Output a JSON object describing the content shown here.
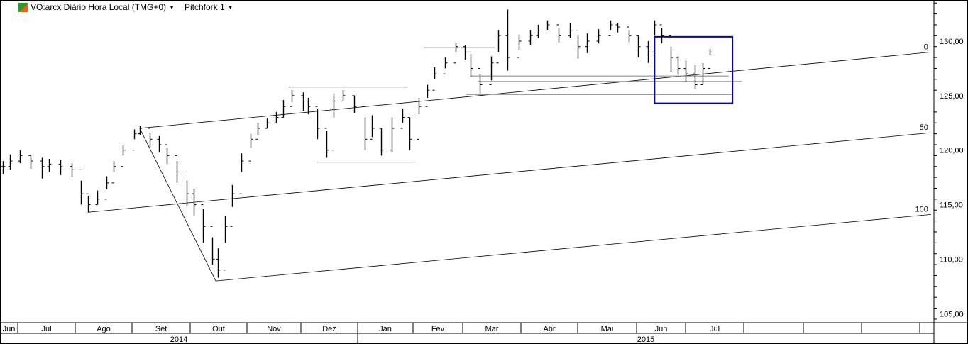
{
  "header": {
    "logo_text": "Eo",
    "symbol_label": "VO:arcx Diário Hora Local (TMG+0)",
    "study_label": "Pitchfork 1",
    "dropdown_icon": "triangle-down-icon"
  },
  "chart_data": {
    "type": "ohlc",
    "ylim": [
      104,
      133.5
    ],
    "y_ticks": [
      "105,00",
      "110,00",
      "115,00",
      "120,00",
      "125,00",
      "130,00"
    ],
    "y_tick_values": [
      105,
      110,
      115,
      120,
      125,
      130
    ],
    "months": [
      {
        "label": "Jun",
        "start": "2014-06-01"
      },
      {
        "label": "Jul",
        "start": "2014-07-01"
      },
      {
        "label": "Ago",
        "start": "2014-08-01"
      },
      {
        "label": "Set",
        "start": "2014-09-01"
      },
      {
        "label": "Out",
        "start": "2014-10-01"
      },
      {
        "label": "Nov",
        "start": "2014-11-01"
      },
      {
        "label": "Dez",
        "start": "2014-12-01"
      },
      {
        "label": "Jan",
        "start": "2015-01-01"
      },
      {
        "label": "Fev",
        "start": "2015-02-01"
      },
      {
        "label": "Mar",
        "start": "2015-03-01"
      },
      {
        "label": "Abr",
        "start": "2015-04-01"
      },
      {
        "label": "Mai",
        "start": "2015-05-01"
      },
      {
        "label": "Jun",
        "start": "2015-06-01"
      },
      {
        "label": "Jul",
        "start": "2015-07-01"
      },
      {
        "label": "",
        "start": "2015-08-01"
      },
      {
        "label": "",
        "start": "2015-09-01"
      },
      {
        "label": "",
        "start": "2015-10-01"
      },
      {
        "label": "",
        "start": "2015-11-01"
      }
    ],
    "years": [
      {
        "label": "2014"
      },
      {
        "label": "2015"
      }
    ],
    "bars": [
      [
        "2014-06-23",
        119.0,
        117.8,
        118.5
      ],
      [
        "2014-06-27",
        119.6,
        118.2,
        119.0
      ],
      [
        "2014-07-02",
        120.0,
        118.8,
        119.5
      ],
      [
        "2014-07-08",
        119.6,
        118.3,
        119.0
      ],
      [
        "2014-07-14",
        119.3,
        117.4,
        118.5
      ],
      [
        "2014-07-18",
        119.2,
        118.0,
        118.7
      ],
      [
        "2014-07-24",
        119.1,
        117.7,
        118.5
      ],
      [
        "2014-07-30",
        118.8,
        117.5,
        118.2
      ],
      [
        "2014-08-04",
        117.2,
        115.0,
        116.0
      ],
      [
        "2014-08-08",
        115.8,
        114.3,
        115.0
      ],
      [
        "2014-08-13",
        116.3,
        115.0,
        115.5
      ],
      [
        "2014-08-18",
        117.6,
        116.4,
        117.0
      ],
      [
        "2014-08-22",
        119.0,
        118.0,
        118.5
      ],
      [
        "2014-08-27",
        120.5,
        119.5,
        120.0
      ],
      [
        "2014-09-02",
        121.9,
        121.0,
        121.5
      ],
      [
        "2014-09-05",
        122.2,
        121.4,
        122.0
      ],
      [
        "2014-09-10",
        121.6,
        120.3,
        121.0
      ],
      [
        "2014-09-15",
        121.3,
        119.8,
        120.5
      ],
      [
        "2014-09-19",
        120.2,
        118.7,
        119.5
      ],
      [
        "2014-09-24",
        119.0,
        117.0,
        118.0
      ],
      [
        "2014-09-29",
        117.2,
        114.9,
        116.0
      ],
      [
        "2014-10-03",
        116.4,
        114.0,
        115.0
      ],
      [
        "2014-10-08",
        114.6,
        111.5,
        113.0
      ],
      [
        "2014-10-13",
        112.0,
        109.5,
        110.0
      ],
      [
        "2014-10-16",
        111.0,
        108.3,
        109.0
      ],
      [
        "2014-10-20",
        114.0,
        111.5,
        113.0
      ],
      [
        "2014-10-24",
        116.8,
        114.8,
        116.0
      ],
      [
        "2014-10-29",
        119.7,
        118.0,
        119.0
      ],
      [
        "2014-11-03",
        121.5,
        120.2,
        121.0
      ],
      [
        "2014-11-07",
        122.5,
        121.4,
        122.0
      ],
      [
        "2014-11-12",
        122.9,
        122.0,
        122.5
      ],
      [
        "2014-11-17",
        123.5,
        122.5,
        123.0
      ],
      [
        "2014-11-21",
        124.6,
        123.0,
        124.0
      ],
      [
        "2014-11-26",
        125.5,
        124.4,
        125.0
      ],
      [
        "2014-12-02",
        125.3,
        123.6,
        124.5
      ],
      [
        "2014-12-05",
        124.8,
        123.3,
        124.0
      ],
      [
        "2014-12-10",
        123.8,
        121.0,
        122.0
      ],
      [
        "2014-12-15",
        121.8,
        119.3,
        120.0
      ],
      [
        "2014-12-19",
        125.2,
        123.0,
        124.5
      ],
      [
        "2014-12-24",
        125.5,
        124.5,
        125.0
      ],
      [
        "2014-12-30",
        125.0,
        123.4,
        124.0
      ],
      [
        "2015-01-05",
        123.0,
        120.0,
        121.0
      ],
      [
        "2015-01-09",
        123.2,
        121.2,
        122.0
      ],
      [
        "2015-01-14",
        122.0,
        119.5,
        120.0
      ],
      [
        "2015-01-20",
        123.0,
        119.8,
        122.0
      ],
      [
        "2015-01-26",
        123.8,
        122.5,
        123.0
      ],
      [
        "2015-01-30",
        123.0,
        120.0,
        121.0
      ],
      [
        "2015-02-04",
        124.8,
        123.3,
        124.0
      ],
      [
        "2015-02-09",
        126.0,
        124.8,
        125.5
      ],
      [
        "2015-02-13",
        127.6,
        126.5,
        127.0
      ],
      [
        "2015-02-19",
        128.5,
        127.5,
        128.0
      ],
      [
        "2015-02-25",
        129.8,
        129.0,
        129.5
      ],
      [
        "2015-03-02",
        129.6,
        128.3,
        129.0
      ],
      [
        "2015-03-05",
        128.8,
        126.7,
        127.5
      ],
      [
        "2015-03-10",
        127.0,
        125.2,
        126.0
      ],
      [
        "2015-03-16",
        128.6,
        126.4,
        128.0
      ],
      [
        "2015-03-20",
        131.0,
        129.0,
        130.5
      ],
      [
        "2015-03-25",
        132.9,
        127.3,
        128.5
      ],
      [
        "2015-03-31",
        130.6,
        129.2,
        130.0
      ],
      [
        "2015-04-06",
        131.0,
        129.6,
        130.5
      ],
      [
        "2015-04-10",
        131.5,
        130.3,
        131.0
      ],
      [
        "2015-04-15",
        131.9,
        131.0,
        131.5
      ],
      [
        "2015-04-21",
        131.2,
        129.8,
        130.5
      ],
      [
        "2015-04-27",
        131.7,
        130.3,
        131.0
      ],
      [
        "2015-05-01",
        130.6,
        128.4,
        129.5
      ],
      [
        "2015-05-06",
        130.7,
        128.9,
        130.0
      ],
      [
        "2015-05-12",
        131.1,
        129.8,
        130.5
      ],
      [
        "2015-05-18",
        131.9,
        131.0,
        131.5
      ],
      [
        "2015-05-22",
        131.7,
        130.8,
        131.3
      ],
      [
        "2015-05-28",
        131.0,
        129.9,
        130.5
      ],
      [
        "2015-06-02",
        130.5,
        128.5,
        129.5
      ],
      [
        "2015-06-08",
        130.0,
        128.0,
        129.0
      ],
      [
        "2015-06-12",
        131.9,
        130.5,
        131.5
      ],
      [
        "2015-06-16",
        131.2,
        129.8,
        130.5
      ],
      [
        "2015-06-22",
        129.5,
        127.2,
        128.5
      ],
      [
        "2015-06-26",
        128.6,
        126.9,
        127.5
      ],
      [
        "2015-07-01",
        128.2,
        126.3,
        127.0
      ],
      [
        "2015-07-06",
        127.8,
        125.6,
        126.0
      ],
      [
        "2015-07-10",
        128.0,
        126.0,
        127.5
      ],
      [
        "2015-07-14",
        129.3,
        128.7,
        129.0
      ]
    ],
    "pitchfork": {
      "lines": [
        {
          "label": "0",
          "from": [
            "2014-09-05",
            122.0
          ],
          "to": [
            "2015-11-07",
            129.0
          ]
        },
        {
          "label": "50",
          "from": [
            "2014-08-08",
            114.3
          ],
          "to": [
            "2015-11-07",
            121.6
          ]
        },
        {
          "label": "100",
          "from": [
            "2014-10-15",
            108.0
          ],
          "to": [
            "2015-11-07",
            114.1
          ]
        }
      ],
      "handle": {
        "from": [
          "2014-09-05",
          122.0
        ],
        "to": [
          "2014-10-15",
          108.0
        ]
      }
    },
    "hlines": [
      {
        "from": "2014-11-24",
        "to": "2015-01-29",
        "price": 125.8,
        "color": "#000000"
      },
      {
        "from": "2014-12-10",
        "to": "2015-02-02",
        "price": 118.9,
        "color": "#909090"
      },
      {
        "from": "2015-02-07",
        "to": "2015-03-18",
        "price": 129.4,
        "color": "#909090"
      },
      {
        "from": "2015-03-05",
        "to": "2015-07-24",
        "price": 126.8,
        "color": "#909090"
      },
      {
        "from": "2015-03-09",
        "to": "2015-07-31",
        "price": 126.3,
        "color": "#909090"
      },
      {
        "from": "2015-03-03",
        "to": "2015-07-26",
        "price": 125.1,
        "color": "#909090"
      }
    ],
    "rectangle": {
      "from": "2015-06-12",
      "to": "2015-07-26",
      "top": 130.4,
      "bottom": 124.3,
      "color": "#0000c0"
    }
  }
}
